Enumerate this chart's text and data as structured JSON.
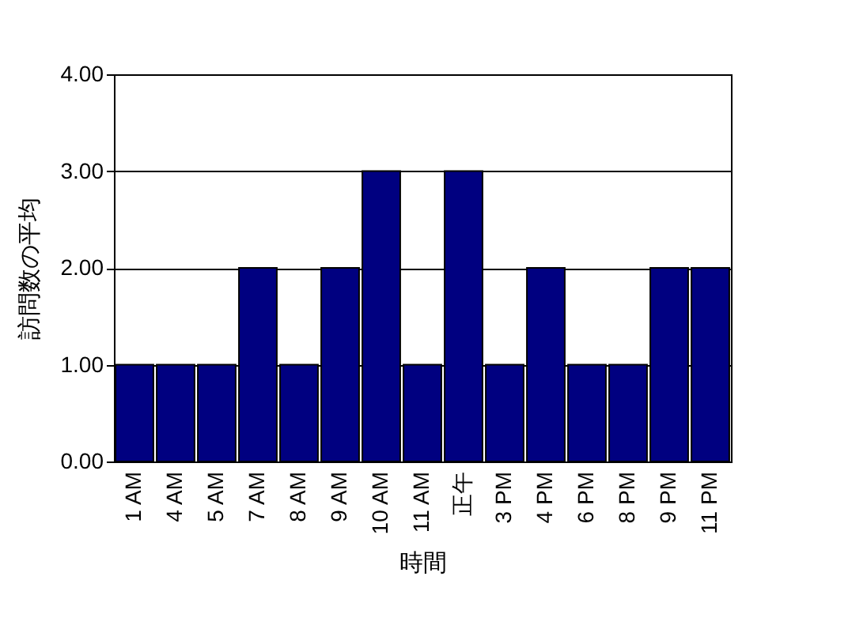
{
  "chart_data": {
    "type": "bar",
    "xlabel": "時間",
    "ylabel": "訪問数の平均",
    "categories": [
      "1 AM",
      "4 AM",
      "5 AM",
      "7 AM",
      "8 AM",
      "9 AM",
      "10 AM",
      "11 AM",
      "正午",
      "3 PM",
      "4 PM",
      "6 PM",
      "8 PM",
      "9 PM",
      "11 PM"
    ],
    "values": [
      1,
      1,
      1,
      2,
      1,
      2,
      3,
      1,
      3,
      1,
      2,
      1,
      1,
      2,
      2
    ],
    "color": "#000080",
    "ylim": [
      0,
      4
    ],
    "yticks": [
      {
        "value": 0,
        "label": "0.00"
      },
      {
        "value": 1,
        "label": "1.00"
      },
      {
        "value": 2,
        "label": "2.00"
      },
      {
        "value": 3,
        "label": "3.00"
      },
      {
        "value": 4,
        "label": "4.00"
      }
    ],
    "grid": true
  }
}
